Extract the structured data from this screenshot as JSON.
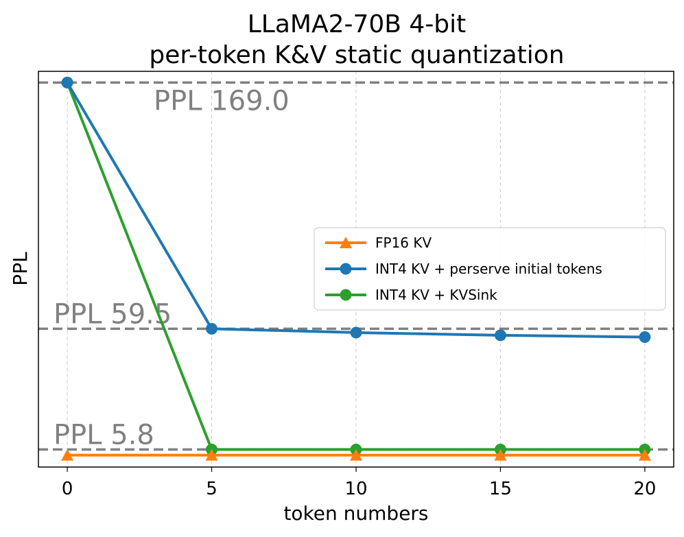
{
  "chart_data": {
    "type": "line",
    "title_line1": "LLaMA2-70B 4-bit",
    "title_line2": "per-token K&V static quantization",
    "xlabel": "token numbers",
    "ylabel": "PPL",
    "x": [
      0,
      5,
      10,
      15,
      20
    ],
    "x_ticks": [
      "0",
      "5",
      "10",
      "15",
      "20"
    ],
    "xlim": [
      -1,
      21
    ],
    "ylim": [
      -2.0,
      174.0
    ],
    "x_grid": true,
    "series": [
      {
        "name": "FP16 KV",
        "color": "#ff7f0e",
        "marker": "triangle",
        "values": [
          3.3,
          3.3,
          3.3,
          3.3,
          3.3
        ]
      },
      {
        "name": "INT4 KV + perserve initial tokens",
        "color": "#1f77b4",
        "marker": "circle",
        "values": [
          169.0,
          59.5,
          57.8,
          56.6,
          55.8
        ]
      },
      {
        "name": "INT4 KV + KVSink",
        "color": "#2ca02c",
        "marker": "circle",
        "values": [
          169.0,
          5.8,
          5.8,
          5.8,
          5.8
        ]
      }
    ],
    "reference_lines": [
      {
        "value": 169.0,
        "label": "PPL 169.0",
        "color": "#808080"
      },
      {
        "value": 59.5,
        "label": "PPL 59.5",
        "color": "#808080"
      },
      {
        "value": 5.8,
        "label": "PPL 5.8",
        "color": "#808080"
      }
    ],
    "legend_position": "center-right"
  }
}
